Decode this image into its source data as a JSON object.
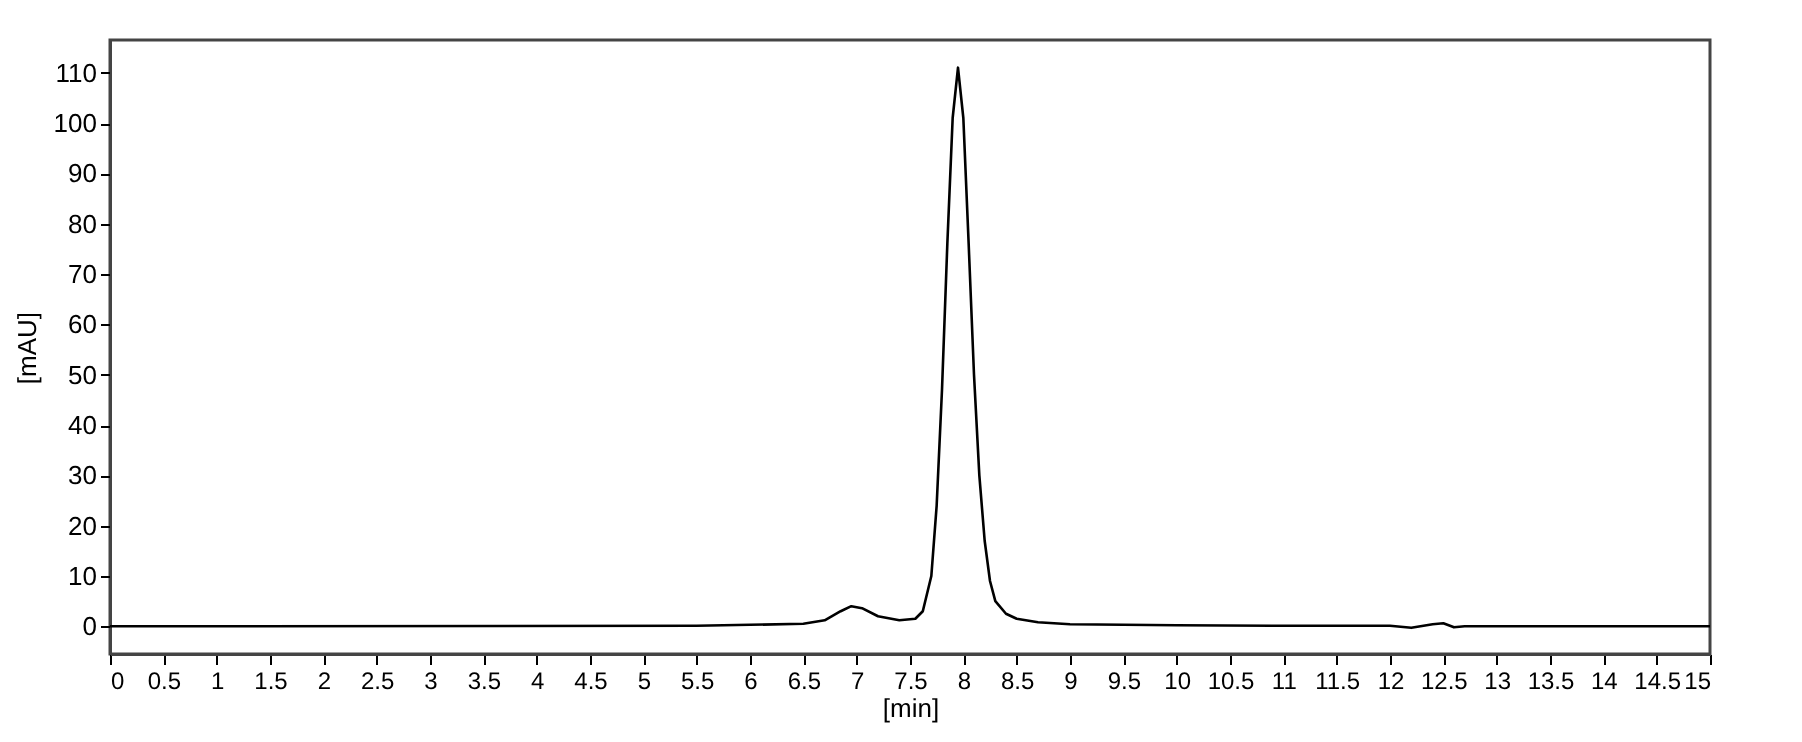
{
  "chart_data": {
    "type": "line",
    "xlabel": "[min]",
    "ylabel": "[mAU]",
    "x": [
      0,
      5.5,
      6.0,
      6.5,
      6.7,
      6.85,
      6.95,
      7.05,
      7.2,
      7.4,
      7.55,
      7.62,
      7.7,
      7.75,
      7.8,
      7.85,
      7.9,
      7.95,
      8.0,
      8.05,
      8.1,
      8.15,
      8.2,
      8.25,
      8.3,
      8.4,
      8.5,
      8.7,
      9.0,
      10,
      11,
      12,
      12.2,
      12.4,
      12.5,
      12.6,
      12.7,
      15
    ],
    "series": [
      {
        "color": "#000000",
        "values": [
          0,
          0.1,
          0.3,
          0.5,
          1.2,
          3.0,
          4.0,
          3.6,
          2.0,
          1.2,
          1.5,
          3,
          10,
          24,
          47,
          76,
          101,
          111,
          101,
          76,
          50,
          30,
          17,
          9,
          5,
          2.5,
          1.5,
          0.8,
          0.4,
          0.2,
          0.1,
          0.1,
          -0.3,
          0.4,
          0.6,
          -0.2,
          0,
          0
        ]
      }
    ],
    "xlim": [
      0,
      15
    ],
    "xticks": [
      0,
      {
        "value": 0.5,
        "label": "0.5"
      },
      1,
      {
        "value": 1.5,
        "label": "1.5"
      },
      2,
      {
        "value": 2.5,
        "label": "2.5"
      },
      3,
      {
        "value": 3.5,
        "label": "3.5"
      },
      4,
      {
        "value": 4.5,
        "label": "4.5"
      },
      5,
      {
        "value": 5.5,
        "label": "5.5"
      },
      6,
      {
        "value": 6.5,
        "label": "6.5"
      },
      7,
      {
        "value": 7.5,
        "label": "7.5"
      },
      8,
      {
        "value": 8.5,
        "label": "8.5"
      },
      9,
      {
        "value": 9.5,
        "label": "9.5"
      },
      10,
      {
        "value": 10.5,
        "label": "10.5"
      },
      11,
      {
        "value": 11.5,
        "label": "11.5"
      },
      12,
      {
        "value": 12.5,
        "label": "12.5"
      },
      13,
      {
        "value": 13.5,
        "label": "13.5"
      },
      14,
      {
        "value": 14.5,
        "label": "14.5"
      },
      15
    ],
    "ylim": [
      -5.5,
      116.5
    ],
    "yticks": [
      0,
      10,
      20,
      30,
      40,
      50,
      60,
      70,
      80,
      90,
      100,
      110
    ],
    "grid": false,
    "marker": "none",
    "line_style": "solid"
  }
}
